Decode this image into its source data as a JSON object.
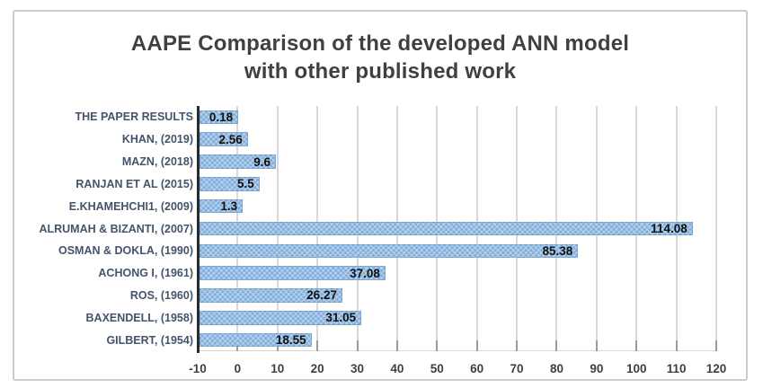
{
  "title": {
    "line1": "AAPE Comparison of the developed ANN model",
    "line2": "with other published work"
  },
  "chart_data": {
    "type": "bar",
    "orientation": "horizontal",
    "title": "AAPE Comparison of the developed ANN model with other published work",
    "categories": [
      "THE PAPER RESULTS",
      "KHAN, (2019)",
      "MAZN, (2018)",
      "RANJAN ET AL (2015)",
      "E.KHAMEHCHI1, (2009)",
      "ALRUMAH & BIZANTI, (2007)",
      "OSMAN & DOKLA, (1990)",
      "ACHONG I, (1961)",
      "ROS, (1960)",
      "BAXENDELL, (1958)",
      "GILBERT, (1954)"
    ],
    "values": [
      0.18,
      2.56,
      9.6,
      5.5,
      1.3,
      114.08,
      85.38,
      37.08,
      26.27,
      31.05,
      18.55
    ],
    "value_labels": [
      "0.18",
      "2.56",
      "9.6",
      "5.5",
      "1.3",
      "114.08",
      "85.38",
      "37.08",
      "26.27",
      "31.05",
      "18.55"
    ],
    "xlabel": "",
    "ylabel": "",
    "xlim": [
      -10,
      120
    ],
    "x_ticks": [
      -10,
      0,
      10,
      20,
      30,
      40,
      50,
      60,
      70,
      80,
      90,
      100,
      110,
      120
    ],
    "x_tick_labels": [
      "-10",
      "0",
      "10",
      "20",
      "30",
      "40",
      "50",
      "60",
      "70",
      "80",
      "90",
      "100",
      "110",
      "120"
    ],
    "bars_baseline": -10,
    "grid": true,
    "legend": "none",
    "data_label_position": "inside-end"
  },
  "colors": {
    "bar_fill": "#7faddc",
    "bar_edge": "#5a87b9",
    "gridline": "#d9d9d9",
    "tick": "#9b9b9b",
    "axis_line": "#2b2b2b",
    "title": "#404040",
    "category_label": "#44546a",
    "tick_label": "#3f3f3f",
    "data_label": "#111111",
    "chart_border": "#cbcbcb",
    "background": "#ffffff"
  }
}
